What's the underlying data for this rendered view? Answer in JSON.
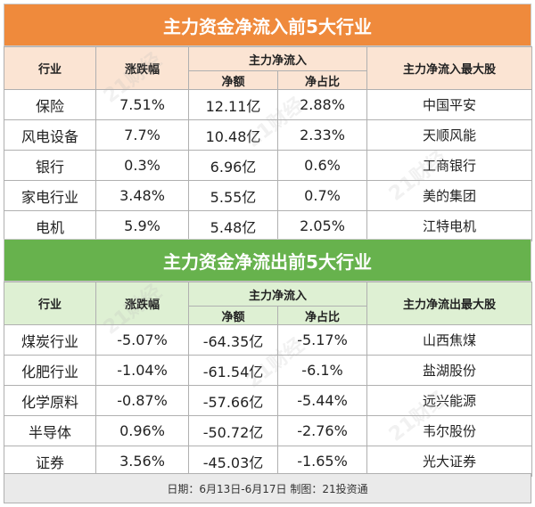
{
  "inflow": {
    "title": "主力资金净流入前5大行业",
    "headers": {
      "industry": "行业",
      "change": "涨跌幅",
      "group": "主力净流入",
      "net": "净额",
      "ratio": "净占比",
      "top_stock": "主力净流入最大股"
    },
    "rows": [
      {
        "industry": "保险",
        "change": "7.51%",
        "net": "12.11亿",
        "ratio": "2.88%",
        "stock": "中国平安"
      },
      {
        "industry": "风电设备",
        "change": "7.7%",
        "net": "10.48亿",
        "ratio": "2.33%",
        "stock": "天顺风能"
      },
      {
        "industry": "银行",
        "change": "0.3%",
        "net": "6.96亿",
        "ratio": "0.6%",
        "stock": "工商银行"
      },
      {
        "industry": "家电行业",
        "change": "3.48%",
        "net": "5.55亿",
        "ratio": "0.7%",
        "stock": "美的集团"
      },
      {
        "industry": "电机",
        "change": "5.9%",
        "net": "5.48亿",
        "ratio": "2.05%",
        "stock": "江特电机"
      }
    ]
  },
  "outflow": {
    "title": "主力资金净流出前5大行业",
    "headers": {
      "industry": "行业",
      "change": "涨跌幅",
      "group": "主力净流入",
      "net": "净额",
      "ratio": "净占比",
      "top_stock": "主力净流出最大股"
    },
    "rows": [
      {
        "industry": "煤炭行业",
        "change": "-5.07%",
        "net": "-64.35亿",
        "ratio": "-5.17%",
        "stock": "山西焦煤"
      },
      {
        "industry": "化肥行业",
        "change": "-1.04%",
        "net": "-61.54亿",
        "ratio": "-6.1%",
        "stock": "盐湖股份"
      },
      {
        "industry": "化学原料",
        "change": "-0.87%",
        "net": "-57.66亿",
        "ratio": "-5.44%",
        "stock": "远兴能源"
      },
      {
        "industry": "半导体",
        "change": "0.96%",
        "net": "-50.72亿",
        "ratio": "-2.76%",
        "stock": "韦尔股份"
      },
      {
        "industry": "证券",
        "change": "3.56%",
        "net": "-45.03亿",
        "ratio": "-1.65%",
        "stock": "光大证券"
      }
    ]
  },
  "footer": "日期：6月13日-6月17日 制图：21投资通",
  "colors": {
    "inflow_banner": "#ef8a3c",
    "inflow_header": "#fbe4d3",
    "outflow_banner": "#67b24d",
    "outflow_header": "#def0d3"
  }
}
